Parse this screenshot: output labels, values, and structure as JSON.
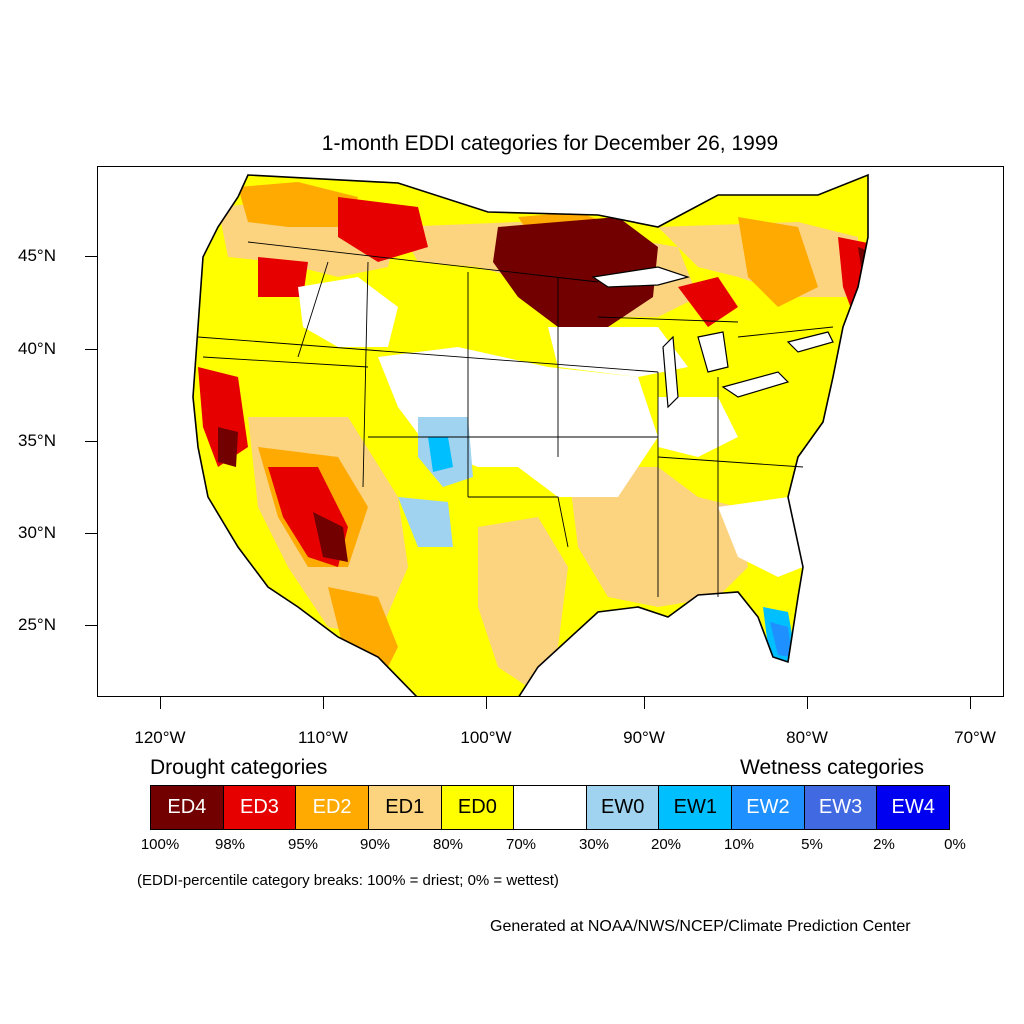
{
  "title": "1-month EDDI categories for December 26, 1999",
  "lat_labels": [
    "45°N",
    "40°N",
    "35°N",
    "30°N",
    "25°N"
  ],
  "lon_labels": [
    "120°W",
    "110°W",
    "100°W",
    "90°W",
    "80°W",
    "70°W"
  ],
  "legend": {
    "drought_heading": "Drought categories",
    "wetness_heading": "Wetness categories",
    "categories": [
      {
        "label": "ED4",
        "color": "#730000",
        "text_color": "#ffffff"
      },
      {
        "label": "ED3",
        "color": "#e60000",
        "text_color": "#ffffff"
      },
      {
        "label": "ED2",
        "color": "#ffaa00",
        "text_color": "#ffffff"
      },
      {
        "label": "ED1",
        "color": "#fcd37f",
        "text_color": "#000000"
      },
      {
        "label": "ED0",
        "color": "#ffff00",
        "text_color": "#000000"
      },
      {
        "label": "",
        "color": "#ffffff",
        "text_color": "#000000"
      },
      {
        "label": "EW0",
        "color": "#9fd3f0",
        "text_color": "#000000"
      },
      {
        "label": "EW1",
        "color": "#00bfff",
        "text_color": "#000000"
      },
      {
        "label": "EW2",
        "color": "#1e90ff",
        "text_color": "#ffffff"
      },
      {
        "label": "EW3",
        "color": "#4169e1",
        "text_color": "#ffffff"
      },
      {
        "label": "EW4",
        "color": "#0000f0",
        "text_color": "#ffffff"
      }
    ],
    "breaks": [
      "100%",
      "98%",
      "95%",
      "90%",
      "80%",
      "70%",
      "30%",
      "20%",
      "10%",
      "5%",
      "2%",
      "0%"
    ]
  },
  "note": "(EDDI-percentile category breaks: 100% = driest; 0% = wettest)",
  "credit": "Generated at NOAA/NWS/NCEP/Climate Prediction Center"
}
